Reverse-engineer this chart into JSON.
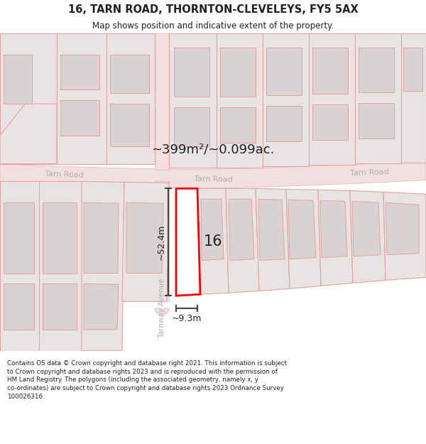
{
  "title": "16, TARN ROAD, THORNTON-CLEVELEYS, FY5 5AX",
  "subtitle": "Map shows position and indicative extent of the property.",
  "area_text": "~399m²/~0.099ac.",
  "label_16": "16",
  "dim_height": "~52.4m",
  "dim_width": "~9.3m",
  "road_label_left": "Tarn Road",
  "road_label_center": "Tarn Road",
  "road_label_right": "Tarn Road",
  "road_label_vertical": "Tarnway Avenue",
  "footer_text": "Contains OS data © Crown copyright and database right 2021. This information is subject\nto Crown copyright and database rights 2023 and is reproduced with the permission of\nHM Land Registry. The polygons (including the associated geometry, namely x, y\nco-ordinates) are subject to Crown copyright and database rights 2023 Ordnance Survey\n100026316.",
  "road_fill": "#f2e0e0",
  "road_edge": "#e0b0b0",
  "plot_fill": "#e8e4e4",
  "bldg_fill": "#d8d2d2",
  "highlight_fill": "#ffffff",
  "highlight_edge": "#ff0000",
  "pink_edge": "#e8a0a0",
  "map_bg": "#f8f4f4",
  "text_grey": "#aaaaaa",
  "text_dark": "#222222",
  "dim_color": "#444444"
}
